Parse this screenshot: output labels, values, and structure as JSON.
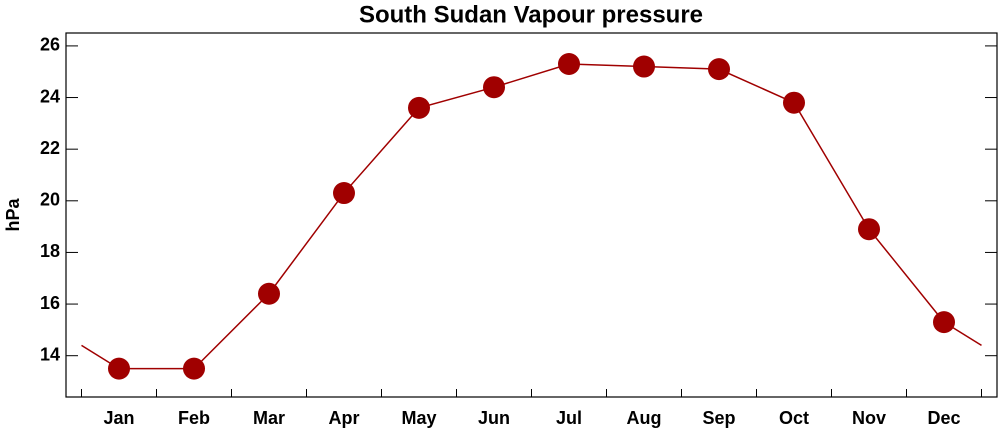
{
  "chart_data": {
    "type": "line",
    "title": "South Sudan Vapour pressure",
    "y_label": "hPa",
    "categories": [
      "Jan",
      "Feb",
      "Mar",
      "Apr",
      "May",
      "Jun",
      "Jul",
      "Aug",
      "Sep",
      "Oct",
      "Nov",
      "Dec"
    ],
    "series": [
      {
        "name": "Vapour pressure",
        "color": "#a00000",
        "values": [
          13.5,
          13.5,
          16.4,
          20.3,
          23.6,
          24.4,
          25.3,
          25.2,
          25.1,
          23.8,
          18.9,
          15.3
        ]
      }
    ],
    "ylim": [
      12.4,
      26.5
    ],
    "yticks": [
      14,
      16,
      18,
      20,
      22,
      24,
      26
    ]
  }
}
